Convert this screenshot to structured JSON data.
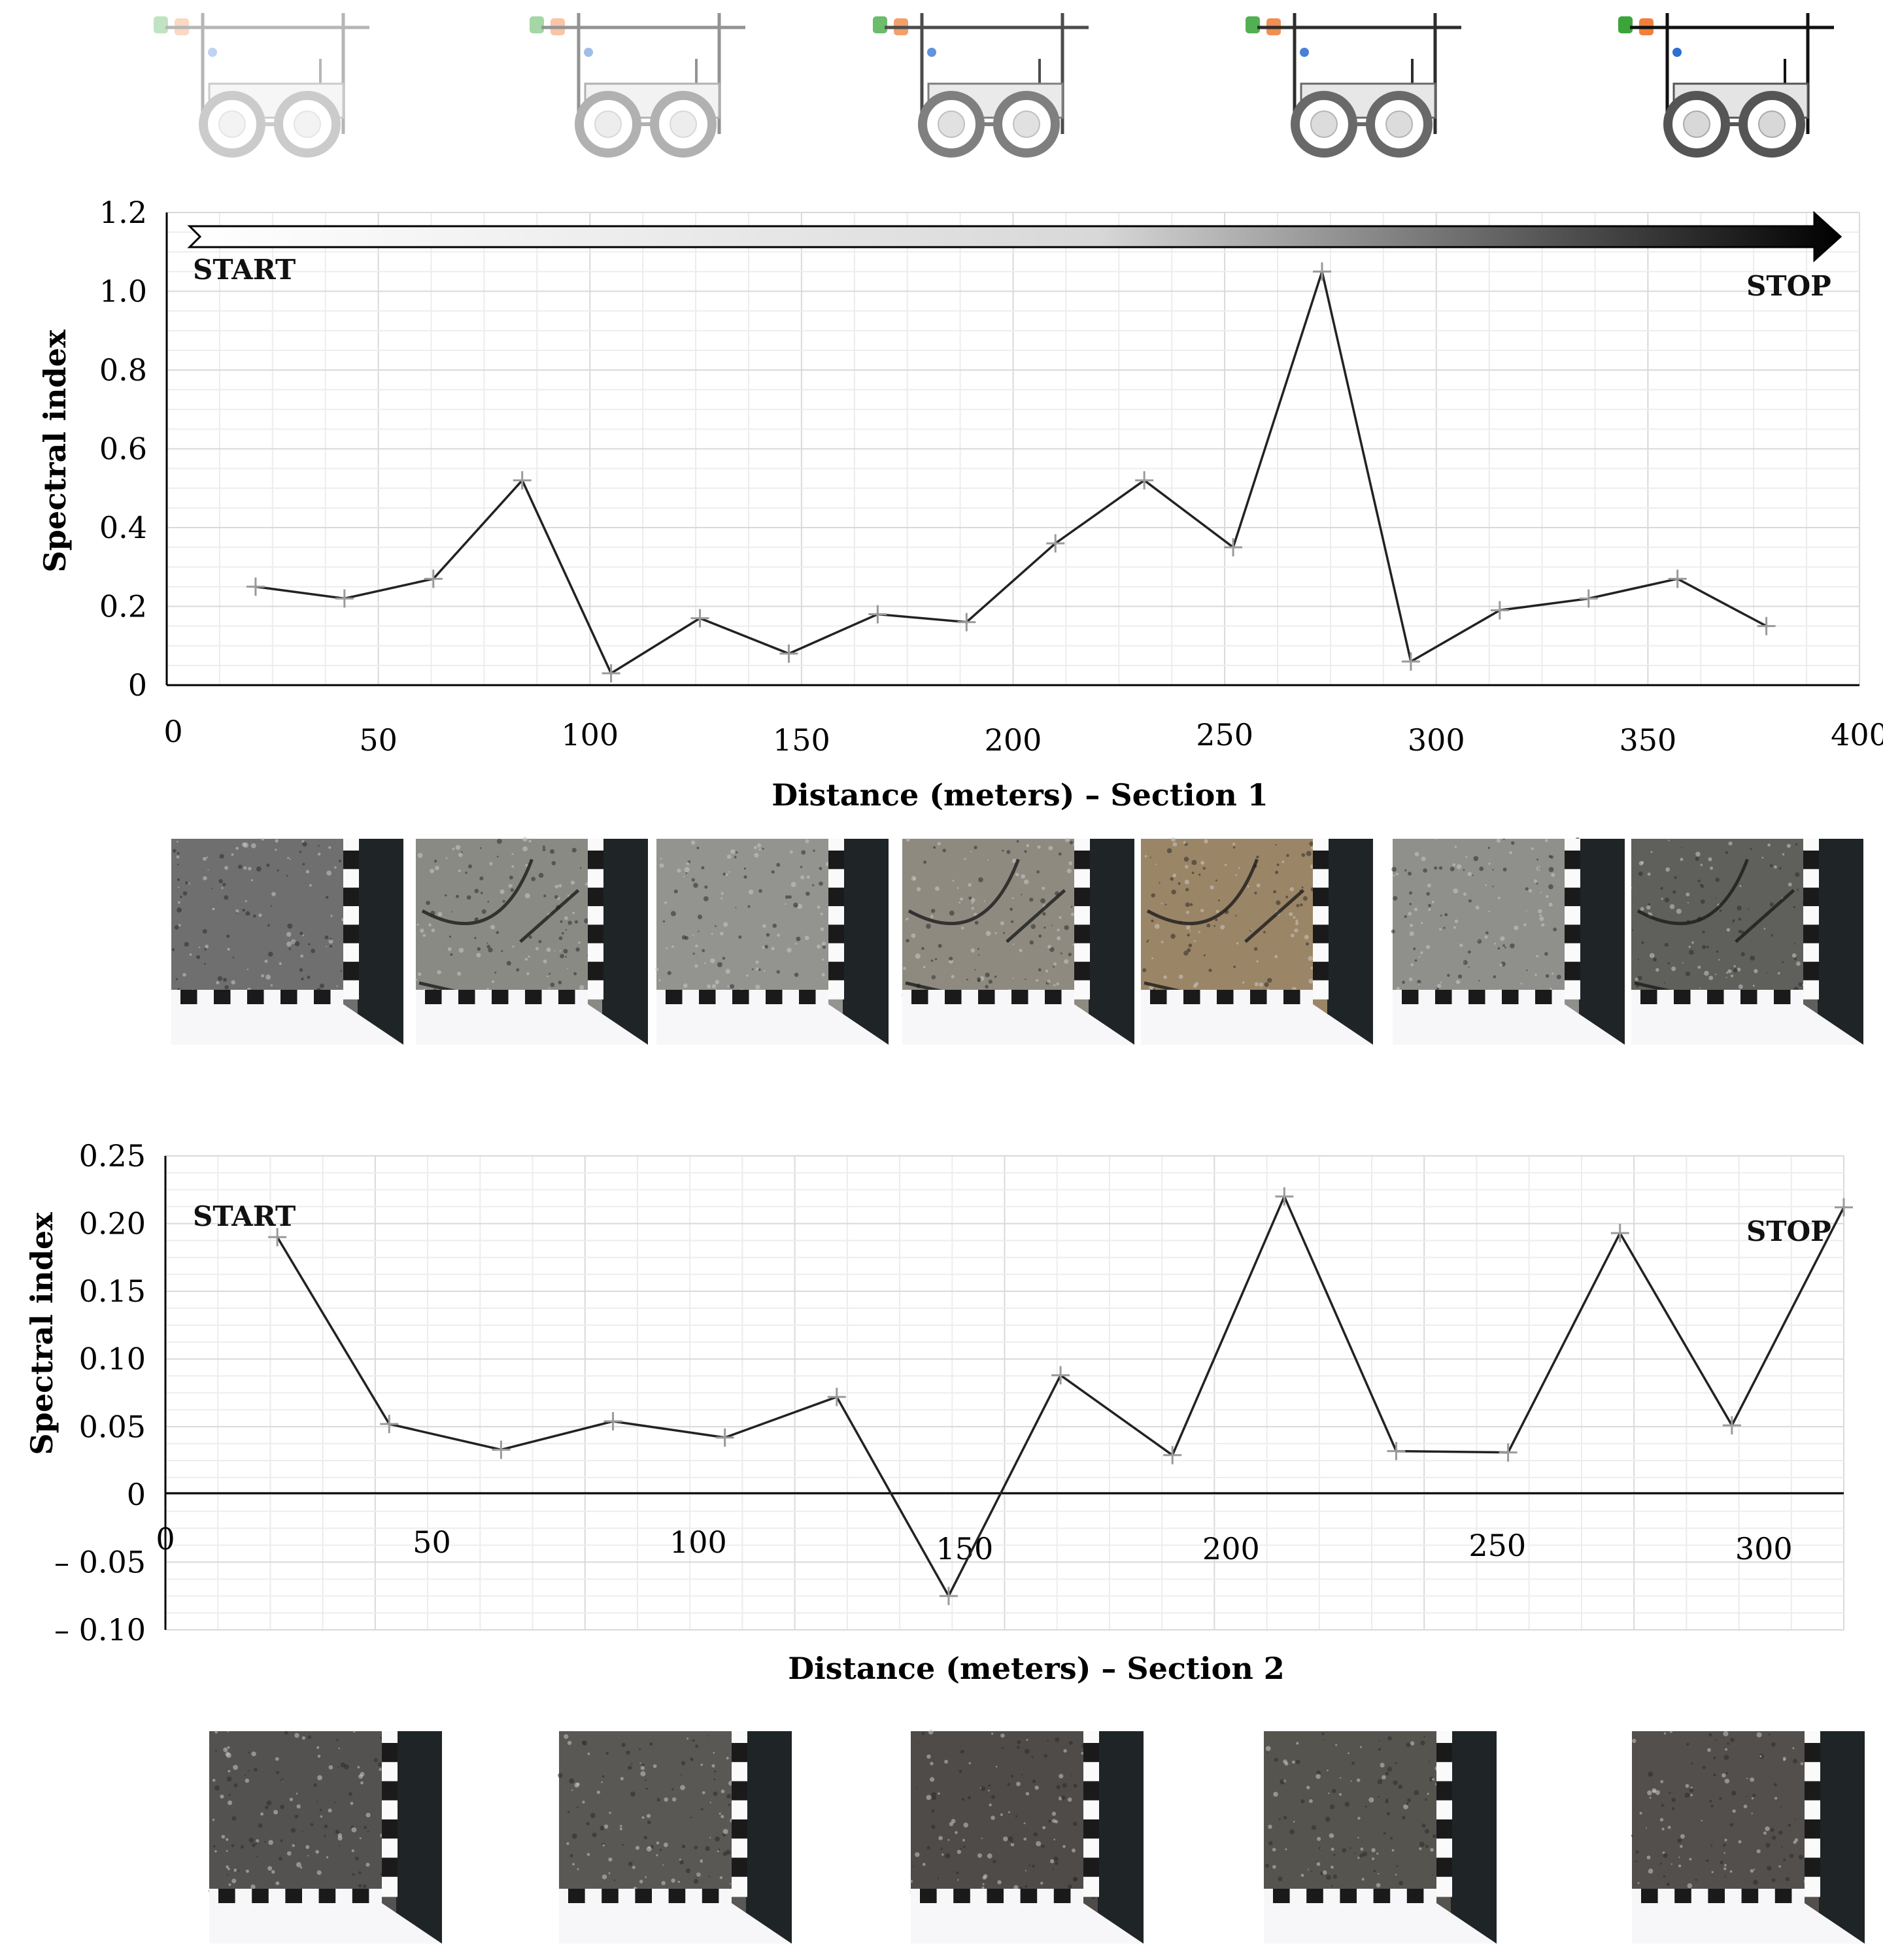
{
  "chart_data": [
    {
      "type": "line",
      "panel": "section-1",
      "xlabel": "Distance (meters) – Section 1",
      "ylabel": "Spectral index",
      "xlim": [
        0,
        400
      ],
      "ylim": [
        0,
        1.2
      ],
      "x_ticks": [
        "0",
        "50",
        "100",
        "150",
        "200",
        "250",
        "300",
        "350",
        "400"
      ],
      "y_ticks": [
        "0",
        "0.2",
        "0.4",
        "0.6",
        "0.8",
        "1.0",
        "1.2"
      ],
      "start_label": "START",
      "stop_label": "STOP",
      "grid": true,
      "marker": "plus",
      "x": [
        21,
        42,
        63,
        84,
        105,
        126,
        147,
        168,
        189,
        210,
        231,
        252,
        273,
        294,
        315,
        336,
        357,
        378
      ],
      "values": [
        0.25,
        0.22,
        0.27,
        0.52,
        0.03,
        0.17,
        0.08,
        0.18,
        0.16,
        0.36,
        0.52,
        0.35,
        1.05,
        0.06,
        0.19,
        0.22,
        0.27,
        0.15
      ]
    },
    {
      "type": "line",
      "panel": "section-2",
      "xlabel": "Distance (meters) – Section 2",
      "ylabel": "Spectral index",
      "xlim": [
        0,
        315
      ],
      "ylim": [
        -0.1,
        0.25
      ],
      "x_ticks": [
        "0",
        "50",
        "100",
        "150",
        "200",
        "250",
        "300"
      ],
      "y_ticks": [
        "0.25",
        "0.20",
        "0.15",
        "0.10",
        "0.05",
        "0",
        "– 0.05",
        "– 0.10"
      ],
      "start_label": "START",
      "stop_label": "STOP",
      "grid": true,
      "marker": "plus",
      "x": [
        21,
        42,
        63,
        84,
        105,
        126,
        147,
        168,
        189,
        210,
        231,
        252,
        273,
        294,
        315
      ],
      "values": [
        0.19,
        0.052,
        0.033,
        0.054,
        0.042,
        0.072,
        -0.075,
        0.088,
        0.029,
        0.22,
        0.032,
        0.031,
        0.193,
        0.051,
        0.212
      ]
    }
  ],
  "carts": [
    {
      "opacity": 0.3
    },
    {
      "opacity": 0.45
    },
    {
      "opacity": 0.75
    },
    {
      "opacity": 0.88
    },
    {
      "opacity": 1.0
    }
  ],
  "section1_photos": [
    {
      "tone": "#6f6f6f",
      "cracks": false
    },
    {
      "tone": "#8a8a85",
      "cracks": true
    },
    {
      "tone": "#939390",
      "cracks": false
    },
    {
      "tone": "#8e8a80",
      "cracks": true
    },
    {
      "tone": "#9b8567",
      "cracks": true
    },
    {
      "tone": "#8f8f8c",
      "cracks": false
    },
    {
      "tone": "#5f5f5c",
      "cracks": true
    }
  ],
  "section2_photos": [
    {
      "tone": "#545250"
    },
    {
      "tone": "#5a5855"
    },
    {
      "tone": "#4f4b48"
    },
    {
      "tone": "#56544f"
    },
    {
      "tone": "#524f4c"
    }
  ]
}
